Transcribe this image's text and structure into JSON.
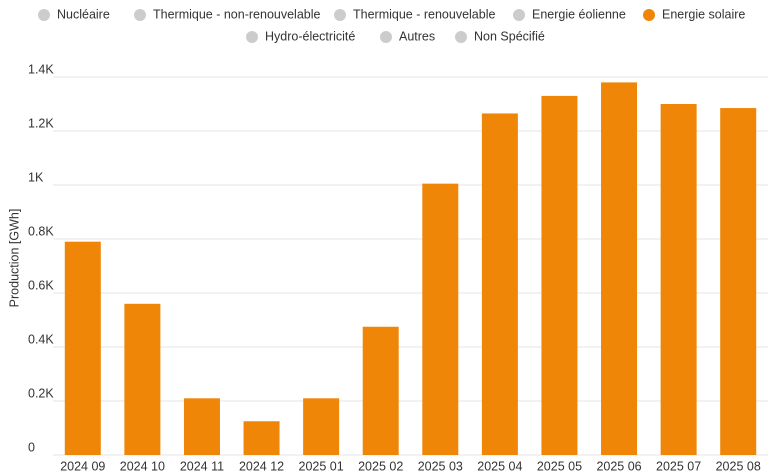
{
  "chart_data": {
    "type": "bar",
    "y_axis_label": "Production [GWh]",
    "categories": [
      "2024 09",
      "2024 10",
      "2024 11",
      "2024 12",
      "2025 01",
      "2025 02",
      "2025 03",
      "2025 04",
      "2025 05",
      "2025 06",
      "2025 07",
      "2025 08"
    ],
    "series": [
      {
        "name": "Nucléaire",
        "color": "#cccccc",
        "visible": false
      },
      {
        "name": "Thermique - non-renouvelable",
        "color": "#cccccc",
        "visible": false
      },
      {
        "name": "Thermique - renouvelable",
        "color": "#cccccc",
        "visible": false
      },
      {
        "name": "Energie éolienne",
        "color": "#cccccc",
        "visible": false
      },
      {
        "name": "Energie solaire",
        "color": "#ef8608",
        "visible": true,
        "values": [
          790,
          560,
          210,
          125,
          210,
          475,
          1005,
          1265,
          1330,
          1380,
          1300,
          1285
        ]
      },
      {
        "name": "Hydro-électricité",
        "color": "#cccccc",
        "visible": false
      },
      {
        "name": "Autres",
        "color": "#cccccc",
        "visible": false
      },
      {
        "name": "Non Spécifié",
        "color": "#cccccc",
        "visible": false
      }
    ],
    "ylim": [
      0,
      1400
    ],
    "yticks": [
      0,
      {
        "value": 200,
        "label": "0.2K"
      },
      {
        "value": 400,
        "label": "0.4K"
      },
      {
        "value": 600,
        "label": "0.6K"
      },
      {
        "value": 800,
        "label": "0.8K"
      },
      {
        "value": 1000,
        "label": "1K"
      },
      {
        "value": 1200,
        "label": "1.2K"
      },
      {
        "value": 1400,
        "label": "1.4K"
      }
    ],
    "grid": true
  }
}
